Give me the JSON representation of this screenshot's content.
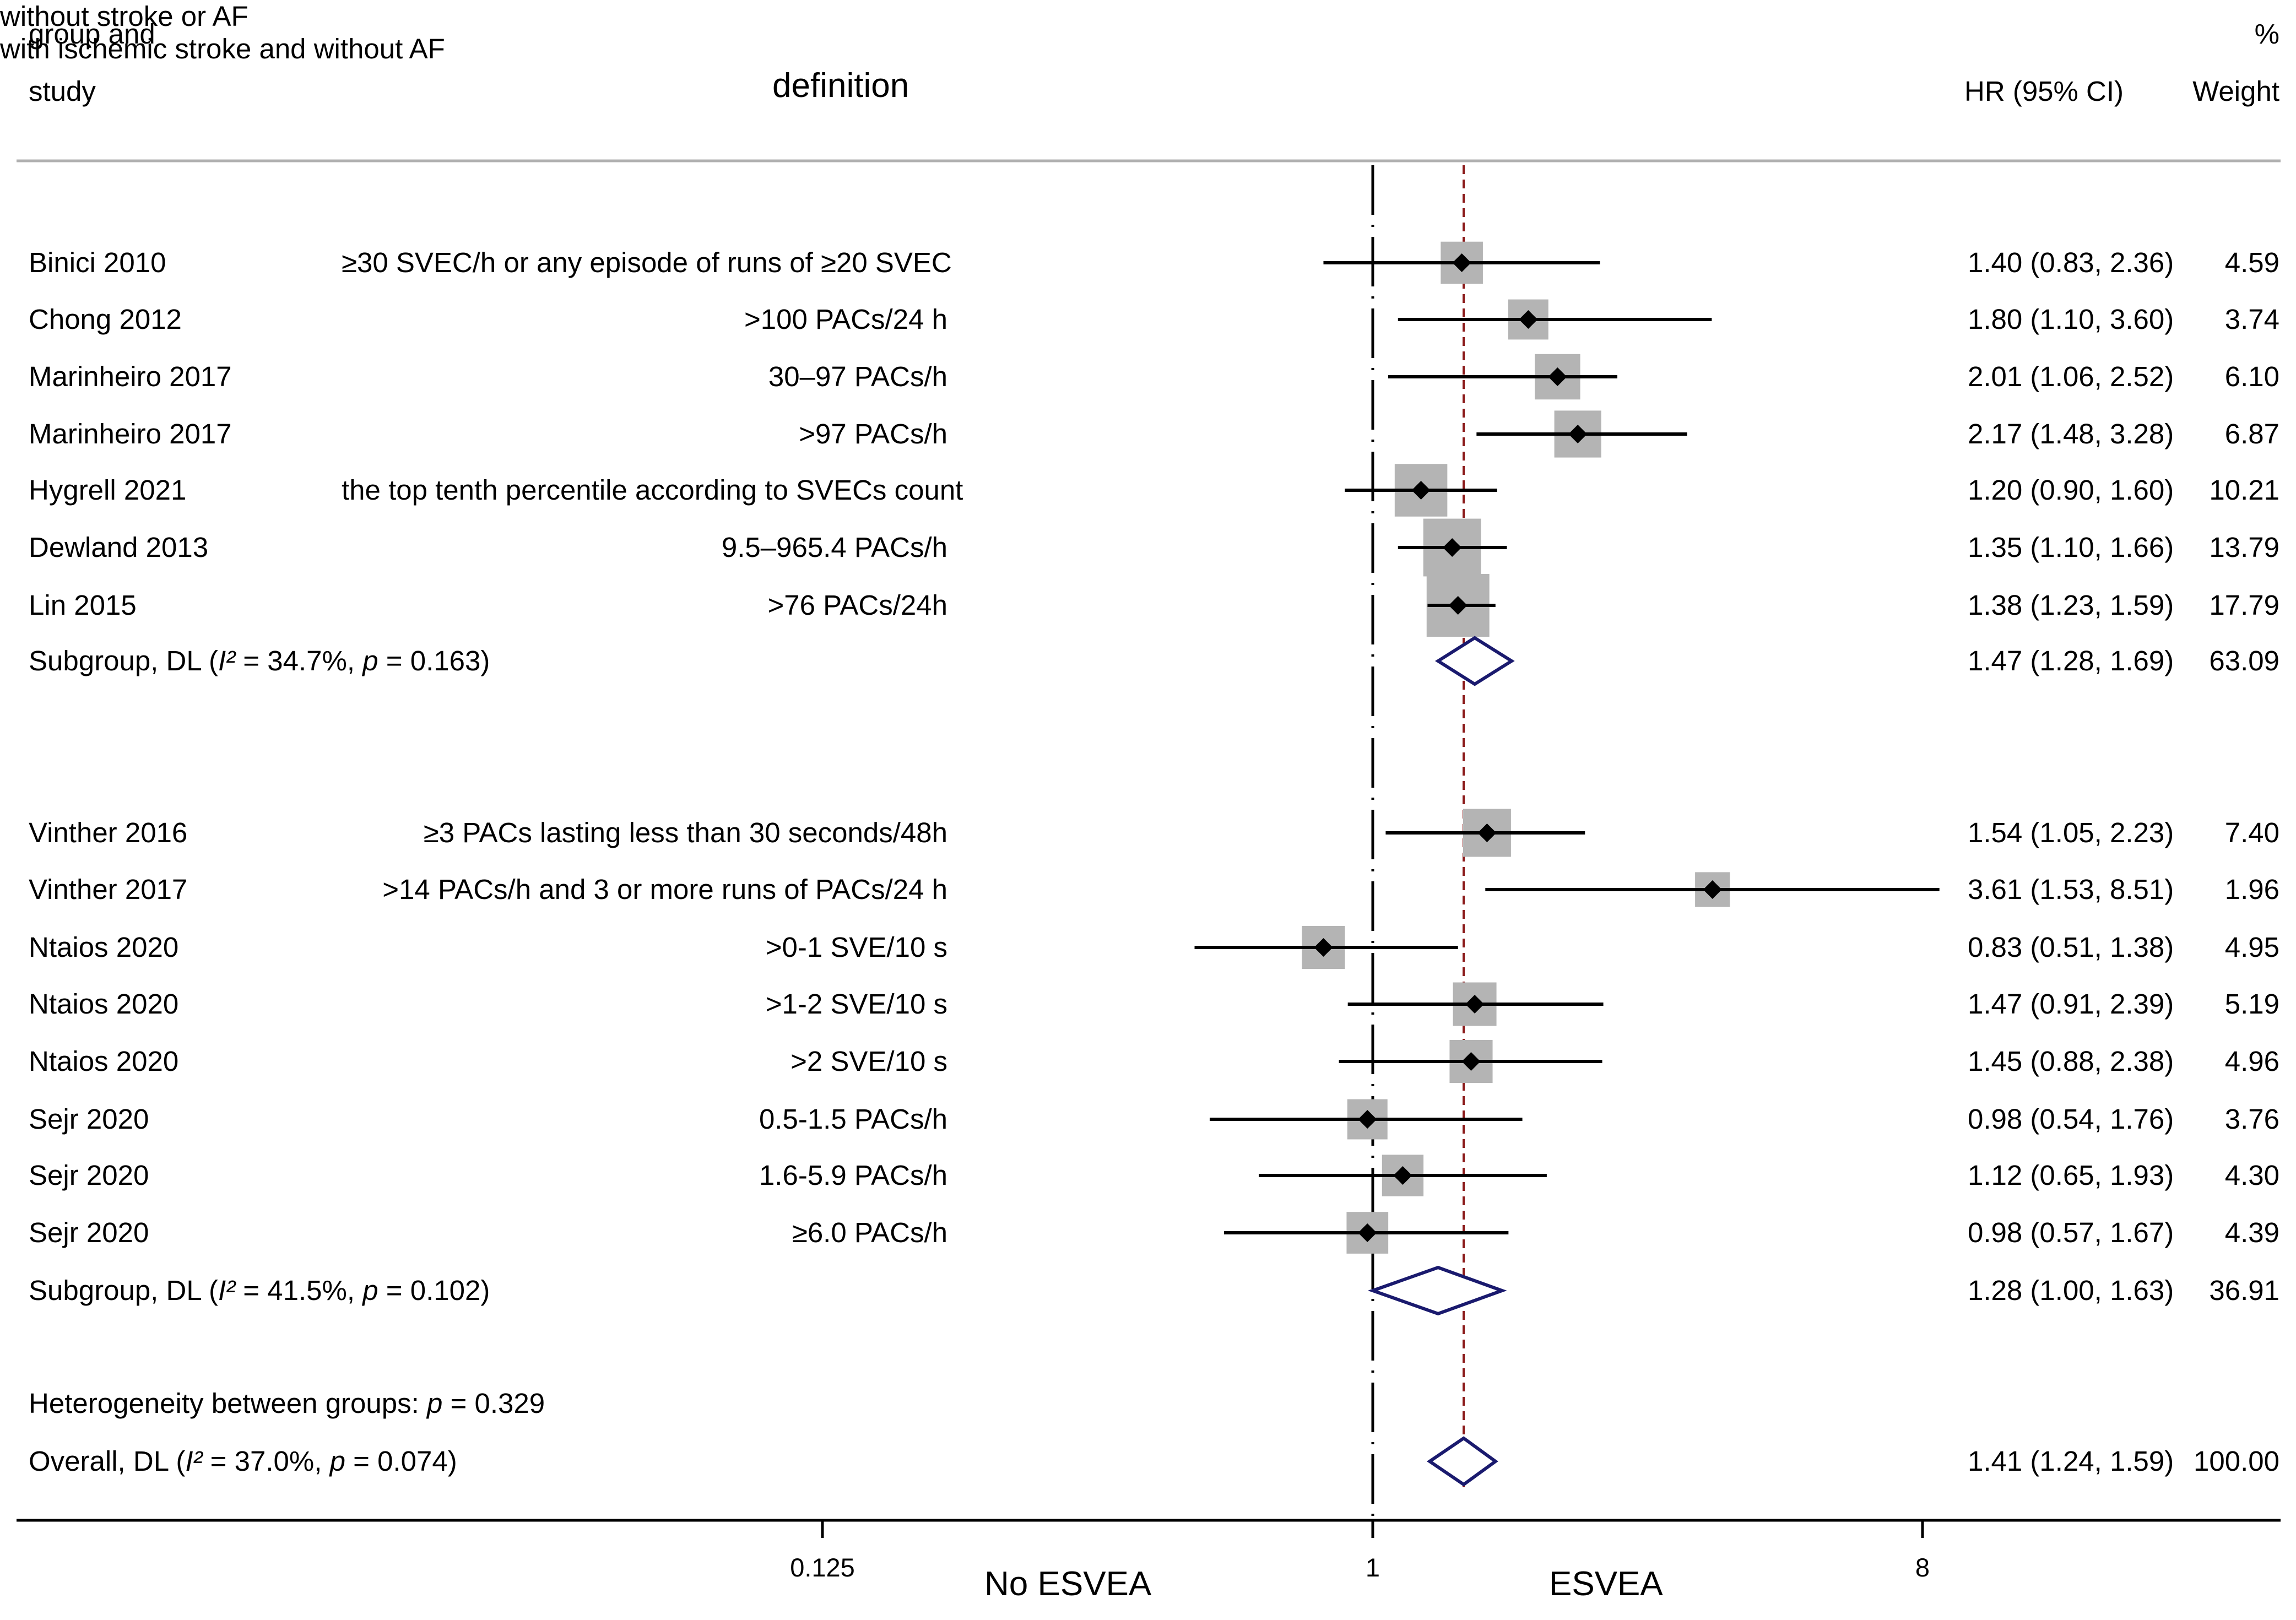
{
  "header": {
    "group_line1": "group and",
    "group_line2": "study",
    "definition": "definition",
    "hr": "HR (95% CI)",
    "weight_line1": "%",
    "weight_line2": "Weight"
  },
  "groups": [
    {
      "label": "without stroke or AF",
      "studies": [
        {
          "study": "Binici 2010",
          "definition": "≥30 SVEC/h or any episode of runs of ≥20 SVEC",
          "hr_text": "1.40 (0.83, 2.36)",
          "weight_text": "4.59"
        },
        {
          "study": "Chong 2012",
          "definition": ">100 PACs/24 h",
          "hr_text": "1.80 (1.10, 3.60)",
          "weight_text": "3.74"
        },
        {
          "study": "Marinheiro 2017",
          "definition": "30–97 PACs/h",
          "hr_text": "2.01 (1.06, 2.52)",
          "weight_text": "6.10"
        },
        {
          "study": "Marinheiro 2017",
          "definition": ">97 PACs/h",
          "hr_text": "2.17 (1.48, 3.28)",
          "weight_text": "6.87"
        },
        {
          "study": "Hygrell 2021",
          "definition": "the top tenth percentile according to SVECs count",
          "hr_text": "1.20 (0.90, 1.60)",
          "weight_text": "10.21"
        },
        {
          "study": "Dewland 2013",
          "definition": "9.5–965.4 PACs/h",
          "hr_text": "1.35 (1.10, 1.66)",
          "weight_text": "13.79"
        },
        {
          "study": "Lin 2015",
          "definition": ">76 PACs/24h",
          "hr_text": "1.38 (1.23, 1.59)",
          "weight_text": "17.79"
        }
      ],
      "subgroup": {
        "label_pre": "Subgroup, DL (",
        "i2_sym": "I²",
        "i2_text": " = 34.7%, ",
        "p_sym": "p",
        "p_text": " = 0.163)",
        "hr_text": "1.47 (1.28, 1.69)",
        "weight_text": "63.09"
      }
    },
    {
      "label": "with ischemic stroke and without AF",
      "studies": [
        {
          "study": "Vinther 2016",
          "definition": "≥3 PACs lasting less than 30 seconds/48h",
          "hr_text": "1.54 (1.05, 2.23)",
          "weight_text": "7.40"
        },
        {
          "study": "Vinther 2017",
          "definition": ">14 PACs/h and 3 or more runs of PACs/24 h",
          "hr_text": "3.61 (1.53, 8.51)",
          "weight_text": "1.96"
        },
        {
          "study": "Ntaios 2020",
          "definition": ">0-1 SVE/10 s",
          "hr_text": "0.83 (0.51, 1.38)",
          "weight_text": "4.95"
        },
        {
          "study": "Ntaios 2020",
          "definition": ">1-2 SVE/10 s",
          "hr_text": "1.47 (0.91, 2.39)",
          "weight_text": "5.19"
        },
        {
          "study": "Ntaios 2020",
          "definition": ">2 SVE/10 s",
          "hr_text": "1.45 (0.88, 2.38)",
          "weight_text": "4.96"
        },
        {
          "study": "Sejr 2020",
          "definition": "0.5-1.5 PACs/h",
          "hr_text": "0.98 (0.54, 1.76)",
          "weight_text": "3.76"
        },
        {
          "study": "Sejr 2020",
          "definition": "1.6-5.9 PACs/h",
          "hr_text": "1.12 (0.65, 1.93)",
          "weight_text": "4.30"
        },
        {
          "study": "Sejr 2020",
          "definition": "≥6.0 PACs/h",
          "hr_text": "0.98 (0.57, 1.67)",
          "weight_text": "4.39"
        }
      ],
      "subgroup": {
        "label_pre": "Subgroup, DL (",
        "i2_sym": "I²",
        "i2_text": " = 41.5%, ",
        "p_sym": "p",
        "p_text": " = 0.102)",
        "hr_text": "1.28 (1.00, 1.63)",
        "weight_text": "36.91"
      }
    }
  ],
  "heterogeneity": {
    "label_pre": "Heterogeneity between groups: ",
    "p_sym": "p",
    "p_text": " = 0.329"
  },
  "overall": {
    "label_pre": "Overall, DL (",
    "i2_sym": "I²",
    "i2_text": " = 37.0%, ",
    "p_sym": "p",
    "p_text": " = 0.074)",
    "hr_text": "1.41 (1.24, 1.59)",
    "weight_text": "100.00"
  },
  "axis": {
    "ticks": [
      "0.125",
      "1",
      "8"
    ],
    "left_label": "No ESVEA",
    "right_label": "ESVEA"
  },
  "colors": {
    "diamond": "#1a1a6e",
    "square": "#b4b4b4",
    "ref_line": "#8b1a1a",
    "axis": "#000000",
    "rule": "#b0b0b0"
  },
  "chart_data": {
    "type": "forest",
    "scale": "log",
    "xlim": [
      0.125,
      8
    ],
    "null_value": 1,
    "overall_reference": 1.41,
    "xticks": [
      0.125,
      1,
      8
    ],
    "rows": [
      {
        "group": "without stroke or AF",
        "label": "Binici 2010",
        "hr": 1.4,
        "lo": 0.83,
        "hi": 2.36,
        "weight": 4.59
      },
      {
        "group": "without stroke or AF",
        "label": "Chong 2012",
        "hr": 1.8,
        "lo": 1.1,
        "hi": 3.6,
        "weight": 3.74
      },
      {
        "group": "without stroke or AF",
        "label": "Marinheiro 2017",
        "hr": 2.01,
        "lo": 1.06,
        "hi": 2.52,
        "weight": 6.1
      },
      {
        "group": "without stroke or AF",
        "label": "Marinheiro 2017",
        "hr": 2.17,
        "lo": 1.48,
        "hi": 3.28,
        "weight": 6.87
      },
      {
        "group": "without stroke or AF",
        "label": "Hygrell 2021",
        "hr": 1.2,
        "lo": 0.9,
        "hi": 1.6,
        "weight": 10.21
      },
      {
        "group": "without stroke or AF",
        "label": "Dewland 2013",
        "hr": 1.35,
        "lo": 1.1,
        "hi": 1.66,
        "weight": 13.79
      },
      {
        "group": "without stroke or AF",
        "label": "Lin 2015",
        "hr": 1.38,
        "lo": 1.23,
        "hi": 1.59,
        "weight": 17.79
      },
      {
        "group": "without stroke or AF",
        "label": "Subgroup, DL",
        "hr": 1.47,
        "lo": 1.28,
        "hi": 1.69,
        "weight": 63.09,
        "pooled": true
      },
      {
        "group": "with ischemic stroke and without AF",
        "label": "Vinther 2016",
        "hr": 1.54,
        "lo": 1.05,
        "hi": 2.23,
        "weight": 7.4
      },
      {
        "group": "with ischemic stroke and without AF",
        "label": "Vinther 2017",
        "hr": 3.61,
        "lo": 1.53,
        "hi": 8.51,
        "weight": 1.96
      },
      {
        "group": "with ischemic stroke and without AF",
        "label": "Ntaios 2020",
        "hr": 0.83,
        "lo": 0.51,
        "hi": 1.38,
        "weight": 4.95
      },
      {
        "group": "with ischemic stroke and without AF",
        "label": "Ntaios 2020",
        "hr": 1.47,
        "lo": 0.91,
        "hi": 2.39,
        "weight": 5.19
      },
      {
        "group": "with ischemic stroke and without AF",
        "label": "Ntaios 2020",
        "hr": 1.45,
        "lo": 0.88,
        "hi": 2.38,
        "weight": 4.96
      },
      {
        "group": "with ischemic stroke and without AF",
        "label": "Sejr 2020",
        "hr": 0.98,
        "lo": 0.54,
        "hi": 1.76,
        "weight": 3.76
      },
      {
        "group": "with ischemic stroke and without AF",
        "label": "Sejr 2020",
        "hr": 1.12,
        "lo": 0.65,
        "hi": 1.93,
        "weight": 4.3
      },
      {
        "group": "with ischemic stroke and without AF",
        "label": "Sejr 2020",
        "hr": 0.98,
        "lo": 0.57,
        "hi": 1.67,
        "weight": 4.39
      },
      {
        "group": "with ischemic stroke and without AF",
        "label": "Subgroup, DL",
        "hr": 1.28,
        "lo": 1.0,
        "hi": 1.63,
        "weight": 36.91,
        "pooled": true
      },
      {
        "group": "overall",
        "label": "Overall, DL",
        "hr": 1.41,
        "lo": 1.24,
        "hi": 1.59,
        "weight": 100.0,
        "pooled": true
      }
    ]
  }
}
